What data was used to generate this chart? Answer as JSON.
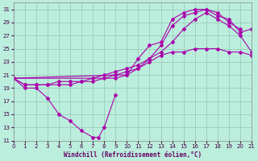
{
  "xlabel": "Windchill (Refroidissement éolien,°C)",
  "xlim": [
    0,
    21
  ],
  "ylim": [
    11,
    32
  ],
  "xticks": [
    0,
    1,
    2,
    3,
    4,
    5,
    6,
    7,
    8,
    9,
    10,
    11,
    12,
    13,
    14,
    15,
    16,
    17,
    18,
    19,
    20,
    21
  ],
  "yticks": [
    11,
    13,
    15,
    17,
    19,
    21,
    23,
    25,
    27,
    29,
    31
  ],
  "bg_color": "#bbeedd",
  "grid_color": "#99ccbb",
  "line_color": "#aa00aa",
  "series_dip": [
    [
      0,
      20.5
    ],
    [
      1,
      19.0
    ],
    [
      2,
      19.0
    ],
    [
      3,
      17.5
    ],
    [
      4,
      15.0
    ],
    [
      5,
      14.0
    ],
    [
      6,
      12.5
    ],
    [
      7,
      11.5
    ],
    [
      7.5,
      11.5
    ],
    [
      8,
      13.0
    ],
    [
      9,
      18.0
    ]
  ],
  "series_top": [
    [
      0,
      20.5
    ],
    [
      9,
      21.0
    ],
    [
      10,
      21.0
    ],
    [
      11,
      23.5
    ],
    [
      12,
      25.5
    ],
    [
      13,
      26.0
    ],
    [
      14,
      29.5
    ],
    [
      15,
      30.5
    ],
    [
      16,
      31.0
    ],
    [
      17,
      31.0
    ],
    [
      18,
      30.5
    ],
    [
      19,
      29.0
    ],
    [
      20,
      28.0
    ]
  ],
  "series_mid_upper": [
    [
      0,
      20.5
    ],
    [
      9,
      20.5
    ],
    [
      10,
      21.0
    ],
    [
      11,
      22.0
    ],
    [
      12,
      23.5
    ],
    [
      13,
      25.5
    ],
    [
      14,
      28.5
    ],
    [
      15,
      30.0
    ],
    [
      16,
      30.5
    ],
    [
      17,
      31.0
    ],
    [
      18,
      30.0
    ],
    [
      19,
      29.5
    ],
    [
      20,
      27.5
    ],
    [
      21,
      28.0
    ]
  ],
  "series_mid_lower": [
    [
      0,
      20.5
    ],
    [
      1,
      19.5
    ],
    [
      2,
      19.5
    ],
    [
      3,
      19.5
    ],
    [
      4,
      19.5
    ],
    [
      5,
      19.5
    ],
    [
      6,
      20.0
    ],
    [
      7,
      20.0
    ],
    [
      8,
      20.5
    ],
    [
      9,
      21.0
    ],
    [
      10,
      21.5
    ],
    [
      11,
      22.0
    ],
    [
      12,
      23.0
    ],
    [
      13,
      24.0
    ],
    [
      14,
      24.5
    ],
    [
      15,
      24.5
    ],
    [
      16,
      25.0
    ],
    [
      17,
      25.0
    ],
    [
      18,
      25.0
    ],
    [
      19,
      24.5
    ],
    [
      20,
      24.5
    ],
    [
      21,
      24.0
    ]
  ],
  "series_bottom": [
    [
      0,
      20.5
    ],
    [
      1,
      19.5
    ],
    [
      2,
      19.5
    ],
    [
      3,
      19.5
    ],
    [
      4,
      20.0
    ],
    [
      5,
      20.0
    ],
    [
      6,
      20.0
    ],
    [
      7,
      20.5
    ],
    [
      8,
      21.0
    ],
    [
      9,
      21.5
    ],
    [
      10,
      22.0
    ],
    [
      11,
      22.5
    ],
    [
      12,
      23.5
    ],
    [
      13,
      24.5
    ],
    [
      14,
      26.0
    ],
    [
      15,
      28.0
    ],
    [
      16,
      29.5
    ],
    [
      17,
      30.5
    ],
    [
      18,
      29.5
    ],
    [
      19,
      28.5
    ],
    [
      20,
      27.0
    ],
    [
      21,
      24.5
    ]
  ]
}
